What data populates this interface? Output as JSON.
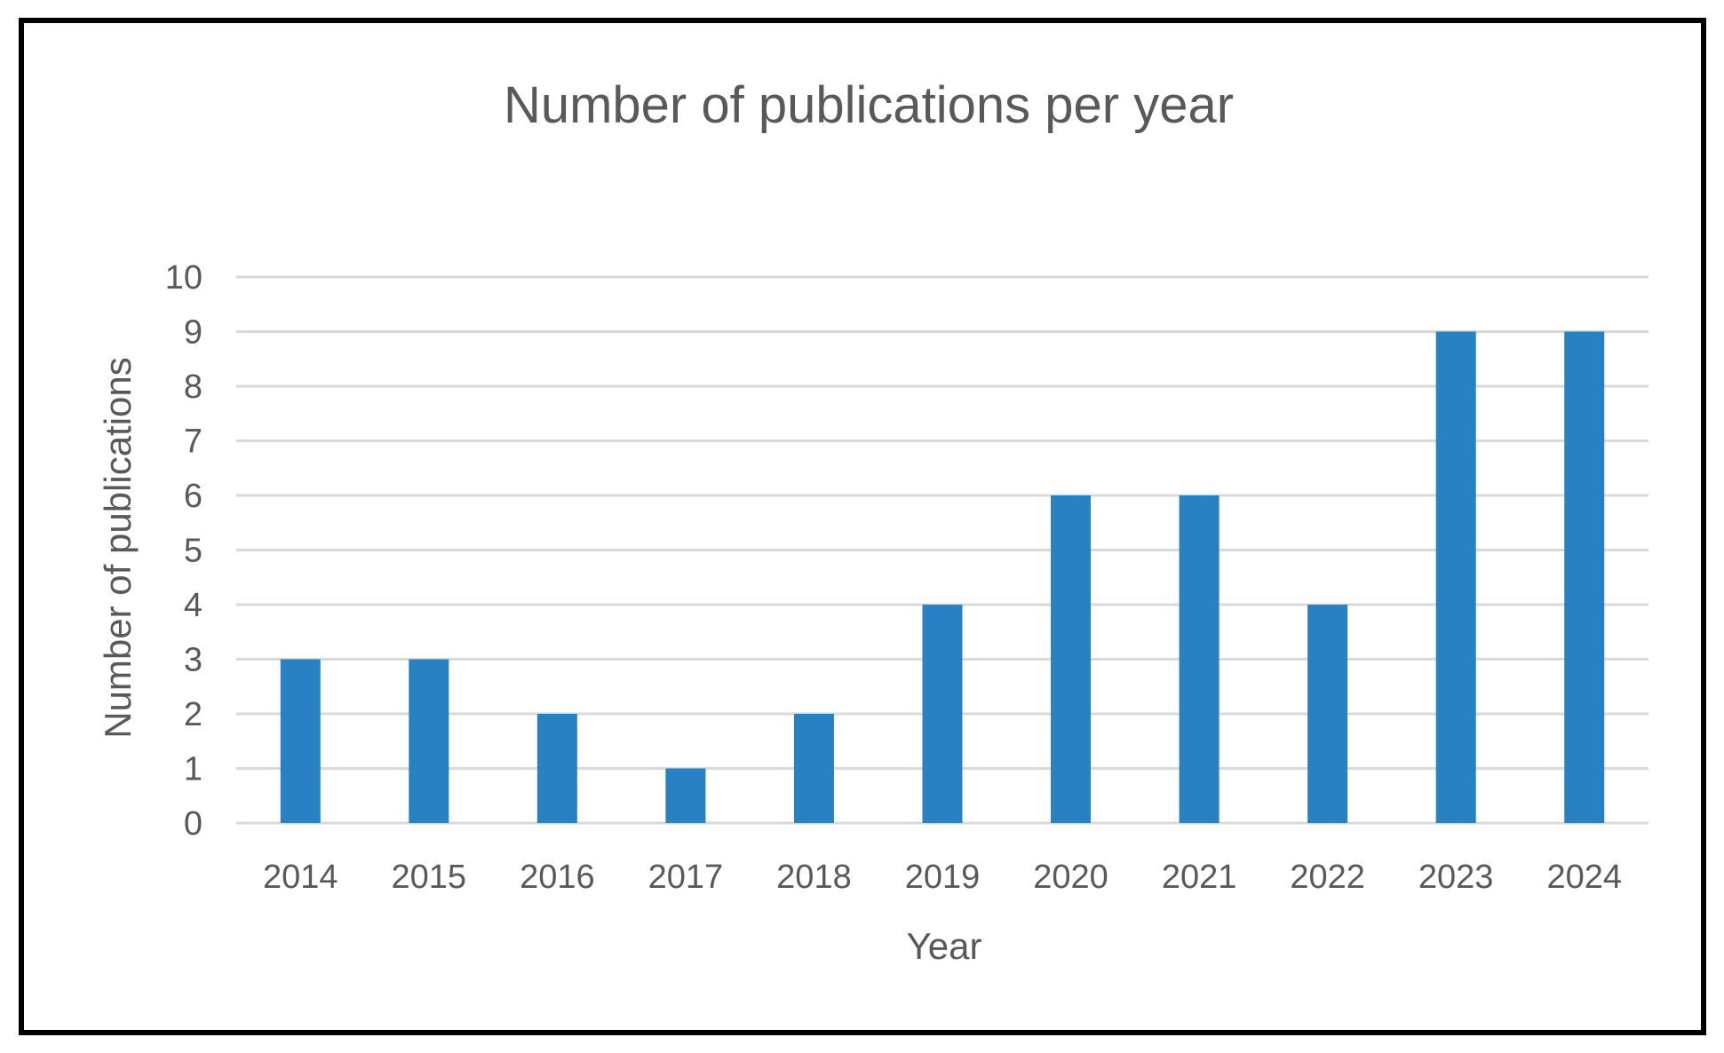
{
  "chart_data": {
    "type": "bar",
    "title": "Number of publications per year",
    "xlabel": "Year",
    "ylabel": "Number of publications",
    "categories": [
      "2014",
      "2015",
      "2016",
      "2017",
      "2018",
      "2019",
      "2020",
      "2021",
      "2022",
      "2023",
      "2024"
    ],
    "values": [
      3,
      3,
      2,
      1,
      2,
      4,
      6,
      6,
      4,
      9,
      9
    ],
    "ylim": [
      0,
      10
    ],
    "yticks": [
      "0",
      "1",
      "2",
      "3",
      "4",
      "5",
      "6",
      "7",
      "8",
      "9",
      "10"
    ],
    "grid": true,
    "legend": "none",
    "bar_color": "#2781c2",
    "grid_color": "#d9d9d9",
    "text_color": "#595959"
  }
}
